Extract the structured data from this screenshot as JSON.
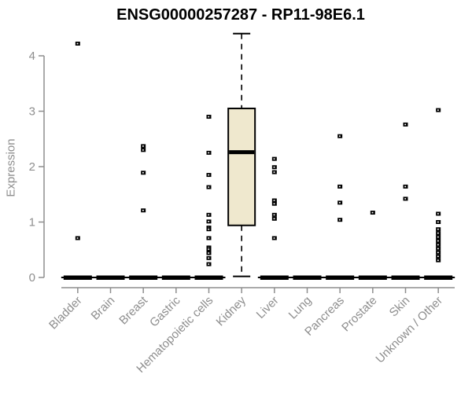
{
  "chart_data": {
    "type": "boxplot",
    "title": "ENSG00000257287 - RP11-98E6.1",
    "ylabel": "Expression",
    "xlabel": "",
    "ylim": [
      0,
      4.45
    ],
    "yticks": [
      0,
      1,
      2,
      3,
      4
    ],
    "grid": false,
    "legend": false,
    "categories": [
      "Bladder",
      "Brain",
      "Breast",
      "Gastric",
      "Hematopoietic cells",
      "Kidney",
      "Liver",
      "Lung",
      "Pancreas",
      "Prostate",
      "Skin",
      "Unknown / Other"
    ],
    "boxes": [
      {
        "category": "Bladder",
        "median": 0,
        "q1": 0,
        "q3": 0,
        "whisker_low": 0,
        "whisker_high": 0,
        "outliers": [
          4.22,
          0.71
        ]
      },
      {
        "category": "Brain",
        "median": 0,
        "q1": 0,
        "q3": 0,
        "whisker_low": 0,
        "whisker_high": 0,
        "outliers": []
      },
      {
        "category": "Breast",
        "median": 0,
        "q1": 0,
        "q3": 0,
        "whisker_low": 0,
        "whisker_high": 0,
        "outliers": [
          2.37,
          2.3,
          1.89,
          1.21
        ]
      },
      {
        "category": "Gastric",
        "median": 0,
        "q1": 0,
        "q3": 0,
        "whisker_low": 0,
        "whisker_high": 0,
        "outliers": []
      },
      {
        "category": "Hematopoietic cells",
        "median": 0,
        "q1": 0,
        "q3": 0,
        "whisker_low": 0,
        "whisker_high": 0,
        "outliers": [
          2.9,
          2.25,
          1.85,
          1.63,
          1.13,
          1.01,
          0.9,
          0.87,
          0.71,
          0.54,
          0.51,
          0.44,
          0.35,
          0.24
        ]
      },
      {
        "category": "Kidney",
        "median": 2.26,
        "q1": 0.94,
        "q3": 3.05,
        "whisker_low": 0.02,
        "whisker_high": 4.4,
        "outliers": []
      },
      {
        "category": "Liver",
        "median": 0,
        "q1": 0,
        "q3": 0,
        "whisker_low": 0,
        "whisker_high": 0,
        "outliers": [
          2.14,
          1.99,
          1.9,
          1.39,
          1.33,
          1.13,
          1.06,
          0.71
        ]
      },
      {
        "category": "Lung",
        "median": 0,
        "q1": 0,
        "q3": 0,
        "whisker_low": 0,
        "whisker_high": 0,
        "outliers": []
      },
      {
        "category": "Pancreas",
        "median": 0,
        "q1": 0,
        "q3": 0,
        "whisker_low": 0,
        "whisker_high": 0,
        "outliers": [
          2.55,
          1.64,
          1.35,
          1.04
        ]
      },
      {
        "category": "Prostate",
        "median": 0,
        "q1": 0,
        "q3": 0,
        "whisker_low": 0,
        "whisker_high": 0,
        "outliers": [
          1.17
        ]
      },
      {
        "category": "Skin",
        "median": 0,
        "q1": 0,
        "q3": 0,
        "whisker_low": 0,
        "whisker_high": 0,
        "outliers": [
          2.76,
          1.64,
          1.42
        ]
      },
      {
        "category": "Unknown / Other",
        "median": 0,
        "q1": 0,
        "q3": 0,
        "whisker_low": 0,
        "whisker_high": 0,
        "outliers": [
          3.02,
          1.15,
          1.0,
          0.87,
          0.8,
          0.73,
          0.66,
          0.59,
          0.52,
          0.45,
          0.38,
          0.31
        ]
      }
    ],
    "colors": {
      "box_fill": "#EFE8CE",
      "box_stroke": "#000000",
      "median": "#000000",
      "whisker": "#000000",
      "outlier": "#000000",
      "axis": "#8E8E8E",
      "tick_label": "#8E8E8E",
      "title": "#000000",
      "background": "#FFFFFF"
    }
  }
}
